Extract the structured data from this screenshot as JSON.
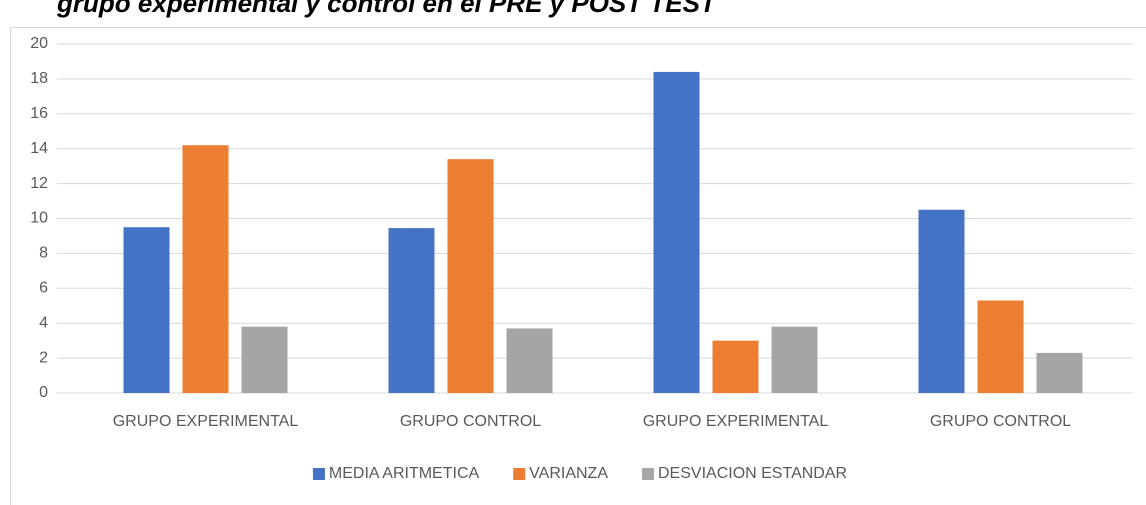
{
  "chart_data": {
    "type": "bar",
    "title": "grupo experimental y control en el PRE y POST TEST",
    "categories": [
      "GRUPO EXPERIMENTAL",
      "GRUPO CONTROL",
      "GRUPO EXPERIMENTAL",
      "GRUPO CONTROL"
    ],
    "series": [
      {
        "name": "MEDIA ARITMETICA",
        "color": "#4472c4",
        "values": [
          9.5,
          9.45,
          18.4,
          10.5
        ]
      },
      {
        "name": "VARIANZA",
        "color": "#ed7d31",
        "values": [
          14.2,
          13.4,
          3.0,
          5.3
        ]
      },
      {
        "name": "DESVIACION ESTANDAR",
        "color": "#a5a5a5",
        "values": [
          3.8,
          3.7,
          3.8,
          2.3
        ]
      }
    ],
    "ylim": [
      0,
      20
    ],
    "yticks": [
      0,
      2,
      4,
      6,
      8,
      10,
      12,
      14,
      16,
      18,
      20
    ],
    "grid": true,
    "legend": "bottom"
  }
}
